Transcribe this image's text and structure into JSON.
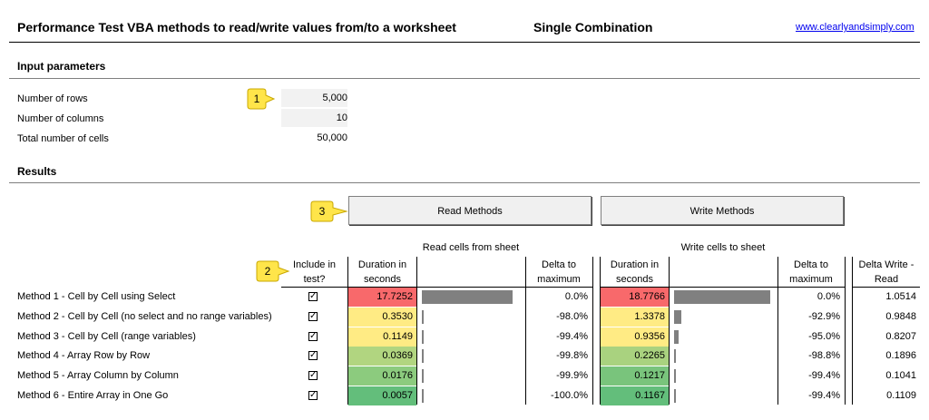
{
  "header": {
    "title": "Performance Test VBA methods to read/write values from/to a worksheet",
    "mode": "Single Combination",
    "link": "www.clearlyandsimply.com"
  },
  "inputs": {
    "section_title": "Input parameters",
    "rows_label": "Number of rows",
    "rows_value": "5,000",
    "cols_label": "Number of columns",
    "cols_value": "10",
    "total_label": "Total number of cells",
    "total_value": "50,000"
  },
  "callouts": {
    "c1": "1",
    "c2": "2",
    "c3": "3"
  },
  "results": {
    "section_title": "Results",
    "read_button": "Read Methods",
    "write_button": "Write Methods",
    "read_group": "Read cells from sheet",
    "write_group": "Write cells to sheet",
    "headers": {
      "include_1": "Include in",
      "include_2": "test?",
      "duration_1": "Duration in",
      "duration_2": "seconds",
      "delta_1": "Delta to",
      "delta_2": "maximum",
      "wduration_1": "Duration in",
      "wduration_2": "seconds",
      "wdelta_1": "Delta to",
      "wdelta_2": "maximum",
      "dwr_1": "Delta Write -",
      "dwr_2": "Read"
    },
    "check_mark": "✓",
    "rows": [
      {
        "name": "Method 1 - Cell by Cell using Select",
        "read": "17.7252",
        "read_delta": "0.0%",
        "write": "18.7766",
        "write_delta": "0.0%",
        "diff": "1.0514"
      },
      {
        "name": "Method 2 - Cell by Cell (no select and no range variables)",
        "read": "0.3530",
        "read_delta": "-98.0%",
        "write": "1.3378",
        "write_delta": "-92.9%",
        "diff": "0.9848"
      },
      {
        "name": "Method 3 - Cell by Cell (range variables)",
        "read": "0.1149",
        "read_delta": "-99.4%",
        "write": "0.9356",
        "write_delta": "-95.0%",
        "diff": "0.8207"
      },
      {
        "name": "Method 4 - Array Row by Row",
        "read": "0.0369",
        "read_delta": "-99.8%",
        "write": "0.2265",
        "write_delta": "-98.8%",
        "diff": "0.1896"
      },
      {
        "name": "Method 5 - Array Column by Column",
        "read": "0.0176",
        "read_delta": "-99.9%",
        "write": "0.1217",
        "write_delta": "-99.4%",
        "diff": "0.1041"
      },
      {
        "name": "Method 6 - Entire Array in One Go",
        "read": "0.0057",
        "read_delta": "-100.0%",
        "write": "0.1167",
        "write_delta": "-99.4%",
        "diff": "0.1109"
      }
    ],
    "read_colors": [
      "#f8696b",
      "#ffeb84",
      "#ffeb84",
      "#b1d580",
      "#8ccb7e",
      "#63be7b"
    ],
    "write_colors": [
      "#f8696b",
      "#ffeb84",
      "#ffeb84",
      "#a9d27f",
      "#79c47c",
      "#63be7b"
    ]
  }
}
